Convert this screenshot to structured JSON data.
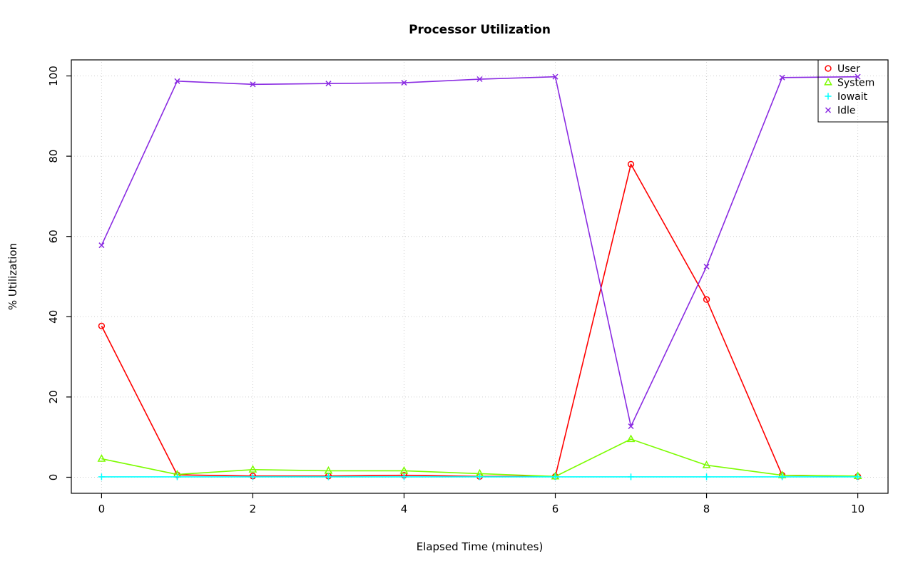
{
  "chart_data": {
    "type": "line",
    "title": "Processor Utilization",
    "xlabel": "Elapsed Time (minutes)",
    "ylabel": "% Utilization",
    "x": [
      0,
      1,
      2,
      3,
      4,
      5,
      6,
      7,
      8,
      9,
      10
    ],
    "xlim": [
      0,
      10
    ],
    "ylim": [
      0,
      100
    ],
    "xticks": [
      0,
      2,
      4,
      6,
      8,
      10
    ],
    "yticks": [
      0,
      20,
      40,
      60,
      80,
      100
    ],
    "grid": true,
    "grid_style": "dotted",
    "legend_position": "topright",
    "series": [
      {
        "name": "User",
        "color": "#FF0000",
        "symbol": "circle",
        "values": [
          37.7,
          0.6,
          0.3,
          0.3,
          0.5,
          0.2,
          0.2,
          78.0,
          44.3,
          0.5,
          0.2
        ]
      },
      {
        "name": "System",
        "color": "#7CFC00",
        "symbol": "triangle",
        "values": [
          4.6,
          0.7,
          1.9,
          1.6,
          1.6,
          0.9,
          0.2,
          9.5,
          3.0,
          0.5,
          0.3
        ]
      },
      {
        "name": "Iowait",
        "color": "#00FFFF",
        "symbol": "plus",
        "values": [
          0.1,
          0.1,
          0.1,
          0.1,
          0.1,
          0.1,
          0.1,
          0.1,
          0.1,
          0.1,
          0.1
        ]
      },
      {
        "name": "Idle",
        "color": "#8A2BE2",
        "symbol": "x",
        "values": [
          57.8,
          98.7,
          97.9,
          98.1,
          98.3,
          99.2,
          99.8,
          12.7,
          52.5,
          99.6,
          99.8
        ]
      }
    ]
  }
}
